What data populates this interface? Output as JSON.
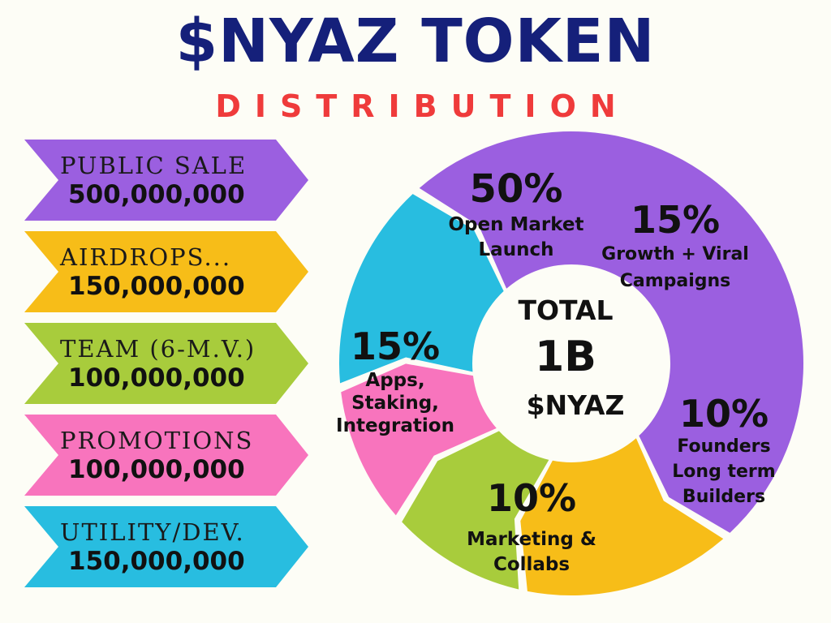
{
  "title": "$NYAZ TOKEN",
  "subtitle": "DISTRIBUTION",
  "legend": [
    {
      "label": "PUBLIC SALE",
      "amount": "500,000,000",
      "color": "#9b5fe0"
    },
    {
      "label": "AIRDROPS...",
      "amount": "150,000,000",
      "color": "#f7bd18"
    },
    {
      "label": "TEAM (6-M.V.)",
      "amount": "100,000,000",
      "color": "#a8cc3c"
    },
    {
      "label": "PROMOTIONS",
      "amount": "100,000,000",
      "color": "#f874bd"
    },
    {
      "label": "UTILITY/DEV.",
      "amount": "150,000,000",
      "color": "#28bde0"
    }
  ],
  "center": {
    "line1": "TOTAL",
    "line2": "1B",
    "line3": "$NYAZ"
  },
  "chart_data": {
    "type": "pie",
    "segments": [
      {
        "percent_label": "50%",
        "value": 50,
        "lines": [
          "Open Market",
          "Launch"
        ],
        "color": "#9b5fe0"
      },
      {
        "percent_label": "15%",
        "value": 15,
        "lines": [
          "Growth + Viral",
          "Campaigns"
        ],
        "color": "#f7bd18"
      },
      {
        "percent_label": "10%",
        "value": 10,
        "lines": [
          "Founders",
          "Long term",
          "Builders"
        ],
        "color": "#a8cc3c"
      },
      {
        "percent_label": "10%",
        "value": 10,
        "lines": [
          "Marketing &",
          "Collabs"
        ],
        "color": "#f874bd"
      },
      {
        "percent_label": "15%",
        "value": 15,
        "lines": [
          "Apps,",
          "Staking,",
          "Integration"
        ],
        "color": "#28bde0"
      }
    ]
  }
}
